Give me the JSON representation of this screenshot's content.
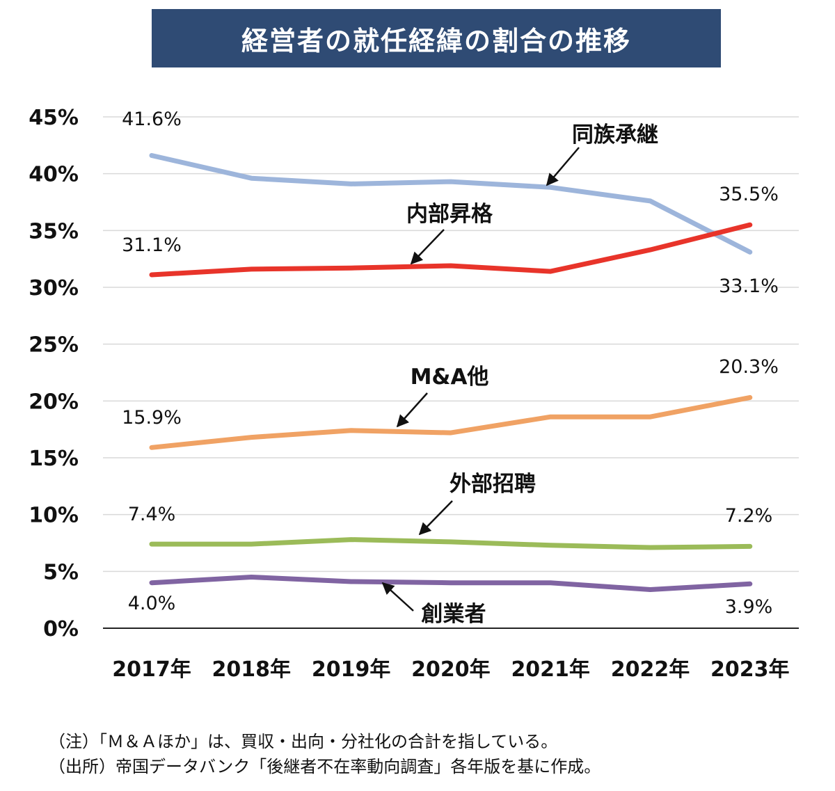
{
  "chart_data": {
    "type": "line",
    "title": "経営者の就任経緯の割合の推移",
    "categories": [
      "2017年",
      "2018年",
      "2019年",
      "2020年",
      "2021年",
      "2022年",
      "2023年"
    ],
    "ylim": [
      0,
      45
    ],
    "yticks": [
      "0%",
      "5%",
      "10%",
      "15%",
      "20%",
      "25%",
      "30%",
      "35%",
      "40%",
      "45%"
    ],
    "grid": true,
    "series": [
      {
        "name": "同族承継",
        "color": "#9db5db",
        "values": [
          41.6,
          39.6,
          39.1,
          39.3,
          38.8,
          37.6,
          33.1
        ],
        "first_label": "41.6%",
        "last_label": "33.1%"
      },
      {
        "name": "内部昇格",
        "color": "#e8342a",
        "values": [
          31.1,
          31.6,
          31.7,
          31.9,
          31.4,
          33.3,
          35.5
        ],
        "first_label": "31.1%",
        "last_label": "35.5%"
      },
      {
        "name": "M&A他",
        "color": "#f0a264",
        "values": [
          15.9,
          16.8,
          17.4,
          17.2,
          18.6,
          18.6,
          20.3
        ],
        "first_label": "15.9%",
        "last_label": "20.3%"
      },
      {
        "name": "外部招聘",
        "color": "#9bbb59",
        "values": [
          7.4,
          7.4,
          7.8,
          7.6,
          7.3,
          7.1,
          7.2
        ],
        "first_label": "7.4%",
        "last_label": "7.2%"
      },
      {
        "name": "創業者",
        "color": "#8064a2",
        "values": [
          4.0,
          4.5,
          4.1,
          4.0,
          4.0,
          3.4,
          3.9
        ],
        "first_label": "4.0%",
        "last_label": "3.9%"
      }
    ]
  },
  "notes": [
    "（注）「Ｍ＆Ａほか」は、買収・出向・分社化の合計を指している。",
    "（出所）帝国データバンク「後継者不在率動向調査」各年版を基に作成。"
  ]
}
